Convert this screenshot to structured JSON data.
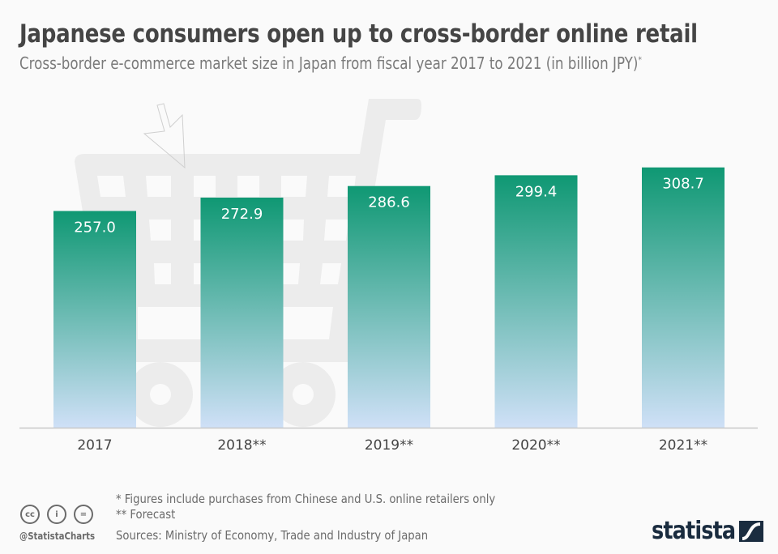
{
  "header": {
    "title": "Japanese consumers open up to cross-border online retail",
    "subtitle": "Cross-border e-commerce market size in Japan from fiscal year 2017 to 2021 (in billion JPY)",
    "subtitle_marker": "*"
  },
  "chart_data": {
    "type": "bar",
    "title": "Japanese consumers open up to cross-border online retail",
    "subtitle": "Cross-border e-commerce market size in Japan from fiscal year 2017 to 2021 (in billion JPY)*",
    "categories": [
      "2017",
      "2018**",
      "2019**",
      "2020**",
      "2021**"
    ],
    "values": [
      257.0,
      272.9,
      286.6,
      299.4,
      308.7
    ],
    "value_labels": [
      "257.0",
      "272.9",
      "286.6",
      "299.4",
      "308.7"
    ],
    "xlabel": "",
    "ylabel": "",
    "ylim": [
      0,
      392
    ],
    "grid": false,
    "y_axis_visible": false,
    "legend": "none",
    "bar_gradient": {
      "top": "#0f9873",
      "bottom": "#cfe0f7"
    },
    "background_icon": "shopping-cart-icon"
  },
  "footer": {
    "note1": "*   Figures include purchases from Chinese and U.S. online retailers only",
    "note2": "** Forecast",
    "sources": "Sources: Ministry of Economy, Trade and Industry of Japan",
    "handle": "@StatistaCharts",
    "cc_labels": [
      "cc",
      "i",
      "="
    ],
    "logo": "statista"
  },
  "colors": {
    "title": "#454545",
    "subtitle": "#7a7a7a",
    "cart": "#ececec",
    "logo": "#1a2c3f"
  }
}
